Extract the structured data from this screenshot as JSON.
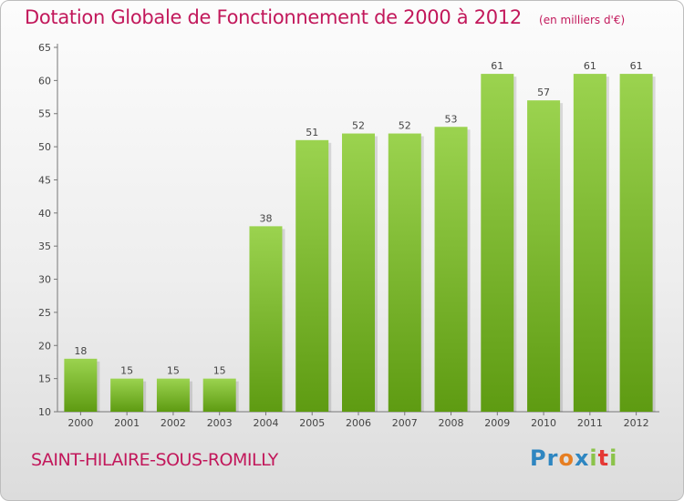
{
  "header": {
    "title": "Dotation Globale de Fonctionnement de 2000 à 2012",
    "subtitle": "(en milliers d'€)"
  },
  "footer": {
    "commune": "SAINT-HILAIRE-SOUS-ROMILLY",
    "logo_letters": [
      "P",
      "r",
      "o",
      "x",
      "i",
      "t",
      "i"
    ],
    "logo_colors": [
      "#2e86c1",
      "#2e86c1",
      "#e67e22",
      "#2e86c1",
      "#8bc34a",
      "#e53935",
      "#8bc34a"
    ]
  },
  "colors": {
    "bar_top": "#9bd34f",
    "bar_bottom": "#5e9b12",
    "title": "#c2185b"
  },
  "chart_data": {
    "type": "bar",
    "title": "Dotation Globale de Fonctionnement de 2000 à 2012",
    "subtitle": "(en milliers d'€)",
    "categories": [
      "2000",
      "2001",
      "2002",
      "2003",
      "2004",
      "2005",
      "2006",
      "2007",
      "2008",
      "2009",
      "2010",
      "2011",
      "2012"
    ],
    "values": [
      18,
      15,
      15,
      15,
      38,
      51,
      52,
      52,
      53,
      61,
      57,
      61,
      61
    ],
    "ylim": [
      10,
      65
    ],
    "yticks": [
      10,
      15,
      20,
      25,
      30,
      35,
      40,
      45,
      50,
      55,
      60,
      65
    ],
    "grid": false,
    "show_value_labels": true
  }
}
